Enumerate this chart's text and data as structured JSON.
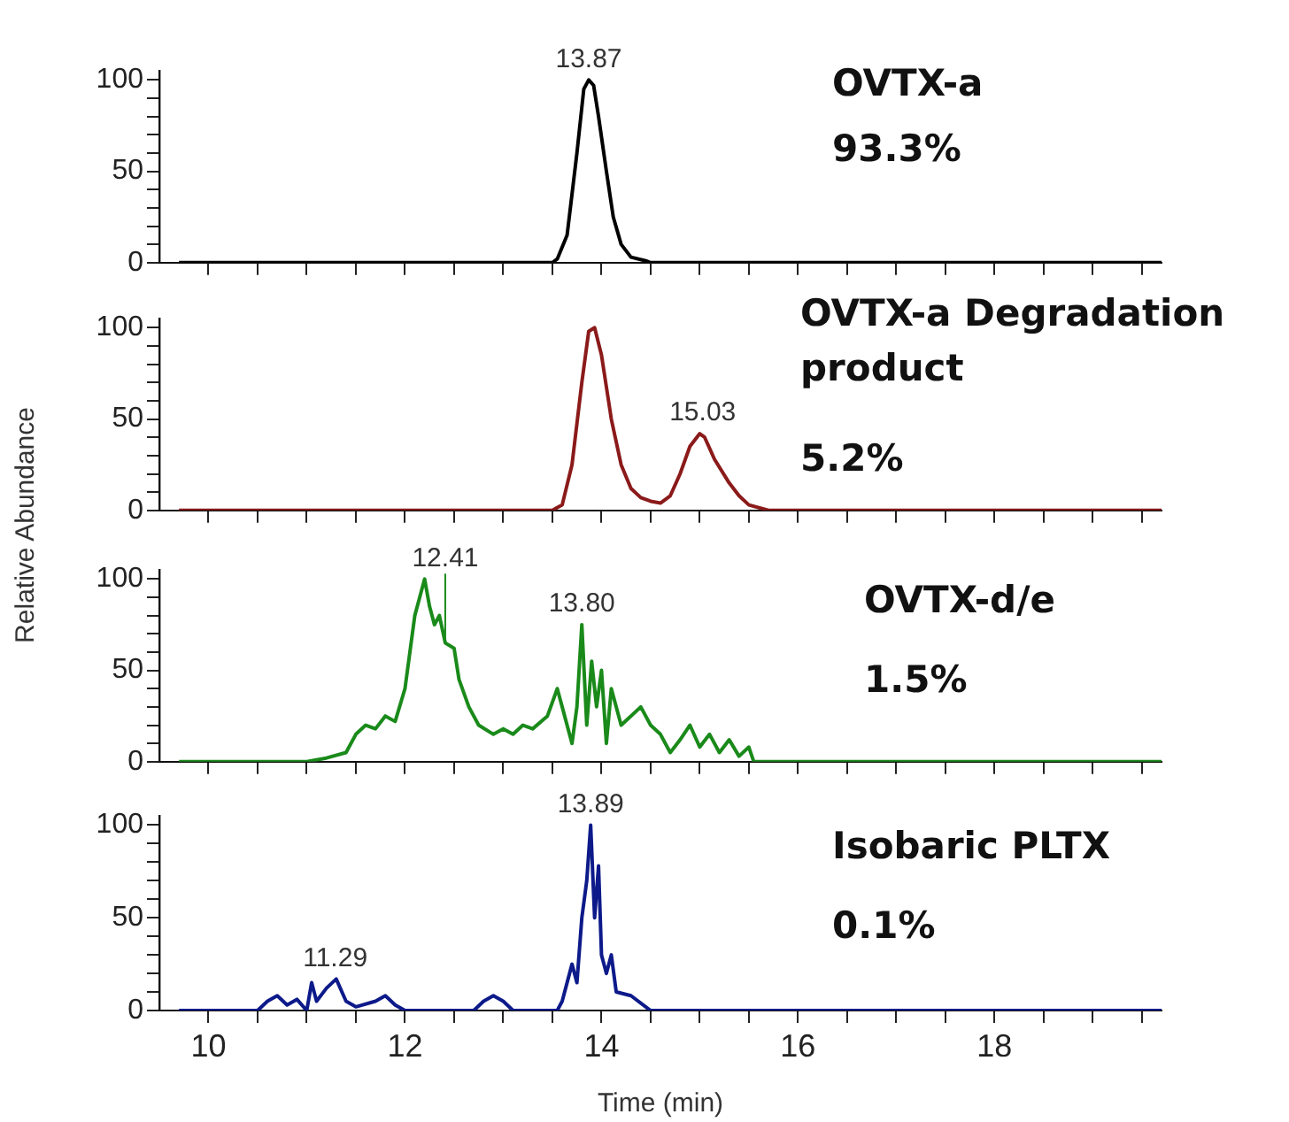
{
  "chart_data": [
    {
      "type": "line",
      "title": "OVTX-a",
      "subtitle": "93.3%",
      "xlim": [
        9.5,
        19.7
      ],
      "ylim": [
        0,
        105
      ],
      "tick_labels": "y",
      "xticks": [
        10,
        {
          "value": 10.5,
          "label": null
        },
        {
          "value": 11,
          "label": null
        },
        {
          "value": 11.5,
          "label": null
        },
        12,
        {
          "value": 12.5,
          "label": null
        },
        {
          "value": 13,
          "label": null
        },
        {
          "value": 13.5,
          "label": null
        },
        14,
        {
          "value": 14.5,
          "label": null
        },
        {
          "value": 15,
          "label": null
        },
        {
          "value": 15.5,
          "label": null
        },
        16,
        {
          "value": 16.5,
          "label": null
        },
        {
          "value": 17,
          "label": null
        },
        {
          "value": 17.5,
          "label": null
        },
        18,
        {
          "value": 18.5,
          "label": null
        },
        {
          "value": 19,
          "label": null
        },
        {
          "value": 19.5,
          "label": null
        }
      ],
      "yticks": [
        0,
        {
          "value": 10,
          "label": null
        },
        {
          "value": 20,
          "label": null
        },
        {
          "value": 30,
          "label": null
        },
        {
          "value": 40,
          "label": null
        },
        50,
        {
          "value": 60,
          "label": null
        },
        {
          "value": 70,
          "label": null
        },
        {
          "value": 80,
          "label": null
        },
        {
          "value": 90,
          "label": null
        },
        100
      ],
      "annotations": [
        {
          "text": "13.87",
          "x": 13.87,
          "y": 100
        }
      ],
      "series": [
        {
          "color": "#000000",
          "x": [
            9.7,
            13.5,
            13.55,
            13.65,
            13.75,
            13.82,
            13.87,
            13.92,
            13.97,
            14.05,
            14.12,
            14.2,
            14.3,
            14.45,
            14.5,
            19.7
          ],
          "values": [
            0,
            0,
            2,
            15,
            60,
            95,
            100,
            97,
            80,
            50,
            25,
            10,
            3,
            1,
            0,
            0
          ]
        }
      ]
    },
    {
      "type": "line",
      "title": "OVTX-a Degradation product",
      "subtitle": "5.2%",
      "ylabel": "Relative Abundance",
      "xlim": [
        9.5,
        19.7
      ],
      "ylim": [
        0,
        105
      ],
      "tick_labels": "y",
      "xticks": [
        10,
        {
          "value": 10.5,
          "label": null
        },
        {
          "value": 11,
          "label": null
        },
        {
          "value": 11.5,
          "label": null
        },
        12,
        {
          "value": 12.5,
          "label": null
        },
        {
          "value": 13,
          "label": null
        },
        {
          "value": 13.5,
          "label": null
        },
        14,
        {
          "value": 14.5,
          "label": null
        },
        {
          "value": 15,
          "label": null
        },
        {
          "value": 15.5,
          "label": null
        },
        16,
        {
          "value": 16.5,
          "label": null
        },
        {
          "value": 17,
          "label": null
        },
        {
          "value": 17.5,
          "label": null
        },
        18,
        {
          "value": 18.5,
          "label": null
        },
        {
          "value": 19,
          "label": null
        },
        {
          "value": 19.5,
          "label": null
        }
      ],
      "yticks": [
        0,
        {
          "value": 10,
          "label": null
        },
        {
          "value": 20,
          "label": null
        },
        {
          "value": 30,
          "label": null
        },
        {
          "value": 40,
          "label": null
        },
        50,
        {
          "value": 60,
          "label": null
        },
        {
          "value": 70,
          "label": null
        },
        {
          "value": 80,
          "label": null
        },
        {
          "value": 90,
          "label": null
        },
        100
      ],
      "annotations": [
        {
          "text": "15.03",
          "x": 15.03,
          "y": 42
        }
      ],
      "series": [
        {
          "color": "#8b1a1a",
          "x": [
            9.7,
            13.5,
            13.6,
            13.7,
            13.8,
            13.87,
            13.93,
            14.0,
            14.1,
            14.2,
            14.3,
            14.4,
            14.5,
            14.6,
            14.7,
            14.8,
            14.9,
            15.0,
            15.05,
            15.15,
            15.3,
            15.4,
            15.5,
            15.7,
            19.7
          ],
          "values": [
            0,
            0,
            3,
            25,
            70,
            98,
            100,
            85,
            50,
            25,
            12,
            7,
            5,
            4,
            8,
            20,
            35,
            42,
            40,
            28,
            15,
            8,
            3,
            0,
            0
          ]
        }
      ]
    },
    {
      "type": "line",
      "title": "OVTX-d/e",
      "subtitle": "1.5%",
      "xlim": [
        9.5,
        19.7
      ],
      "ylim": [
        0,
        105
      ],
      "tick_labels": "y",
      "xticks": [
        10,
        {
          "value": 10.5,
          "label": null
        },
        {
          "value": 11,
          "label": null
        },
        {
          "value": 11.5,
          "label": null
        },
        12,
        {
          "value": 12.5,
          "label": null
        },
        {
          "value": 13,
          "label": null
        },
        {
          "value": 13.5,
          "label": null
        },
        14,
        {
          "value": 14.5,
          "label": null
        },
        {
          "value": 15,
          "label": null
        },
        {
          "value": 15.5,
          "label": null
        },
        16,
        {
          "value": 16.5,
          "label": null
        },
        {
          "value": 17,
          "label": null
        },
        {
          "value": 17.5,
          "label": null
        },
        18,
        {
          "value": 18.5,
          "label": null
        },
        {
          "value": 19,
          "label": null
        },
        {
          "value": 19.5,
          "label": null
        }
      ],
      "yticks": [
        0,
        {
          "value": 10,
          "label": null
        },
        {
          "value": 20,
          "label": null
        },
        {
          "value": 30,
          "label": null
        },
        {
          "value": 40,
          "label": null
        },
        50,
        {
          "value": 60,
          "label": null
        },
        {
          "value": 70,
          "label": null
        },
        {
          "value": 80,
          "label": null
        },
        {
          "value": 90,
          "label": null
        },
        100
      ],
      "annotations": [
        {
          "text": "12.41",
          "x": 12.41,
          "y": 65
        },
        {
          "text": "13.80",
          "x": 13.8,
          "y": 75
        }
      ],
      "series": [
        {
          "color": "#1a8a1a",
          "x": [
            9.7,
            11.0,
            11.2,
            11.4,
            11.5,
            11.6,
            11.7,
            11.8,
            11.9,
            12.0,
            12.05,
            12.1,
            12.15,
            12.2,
            12.25,
            12.3,
            12.35,
            12.41,
            12.5,
            12.55,
            12.65,
            12.75,
            12.9,
            13.0,
            13.1,
            13.2,
            13.3,
            13.45,
            13.55,
            13.6,
            13.7,
            13.75,
            13.8,
            13.85,
            13.9,
            13.95,
            14.0,
            14.05,
            14.1,
            14.2,
            14.3,
            14.4,
            14.5,
            14.6,
            14.7,
            14.8,
            14.9,
            15.0,
            15.1,
            15.2,
            15.3,
            15.4,
            15.5,
            15.55,
            19.7
          ],
          "values": [
            0,
            0,
            2,
            5,
            15,
            20,
            18,
            25,
            22,
            40,
            60,
            80,
            90,
            100,
            85,
            75,
            80,
            65,
            62,
            45,
            30,
            20,
            15,
            18,
            15,
            20,
            18,
            25,
            40,
            30,
            10,
            30,
            75,
            20,
            55,
            30,
            50,
            10,
            40,
            20,
            25,
            30,
            20,
            15,
            5,
            12,
            20,
            8,
            15,
            5,
            12,
            3,
            8,
            0,
            0
          ]
        }
      ]
    },
    {
      "type": "line",
      "title": "Isobaric PLTX",
      "subtitle": "0.1%",
      "xlabel": "Time (min)",
      "xlim": [
        9.5,
        19.7
      ],
      "ylim": [
        0,
        105
      ],
      "xticks": [
        10,
        {
          "value": 10.5,
          "label": null
        },
        {
          "value": 11,
          "label": null
        },
        {
          "value": 11.5,
          "label": null
        },
        12,
        {
          "value": 12.5,
          "label": null
        },
        {
          "value": 13,
          "label": null
        },
        {
          "value": 13.5,
          "label": null
        },
        14,
        {
          "value": 14.5,
          "label": null
        },
        {
          "value": 15,
          "label": null
        },
        {
          "value": 15.5,
          "label": null
        },
        16,
        {
          "value": 16.5,
          "label": null
        },
        {
          "value": 17,
          "label": null
        },
        {
          "value": 17.5,
          "label": null
        },
        18,
        {
          "value": 18.5,
          "label": null
        },
        {
          "value": 19,
          "label": null
        },
        {
          "value": 19.5,
          "label": null
        }
      ],
      "yticks": [
        0,
        {
          "value": 10,
          "label": null
        },
        {
          "value": 20,
          "label": null
        },
        {
          "value": 30,
          "label": null
        },
        {
          "value": 40,
          "label": null
        },
        50,
        {
          "value": 60,
          "label": null
        },
        {
          "value": 70,
          "label": null
        },
        {
          "value": 80,
          "label": null
        },
        {
          "value": 90,
          "label": null
        },
        100
      ],
      "annotations": [
        {
          "text": "13.89",
          "x": 13.89,
          "y": 100
        },
        {
          "text": "11.29",
          "x": 11.29,
          "y": 17
        }
      ],
      "series": [
        {
          "color": "#0d1a8a",
          "x": [
            9.7,
            10.5,
            10.6,
            10.7,
            10.8,
            10.9,
            11.0,
            11.05,
            11.1,
            11.2,
            11.3,
            11.4,
            11.5,
            11.7,
            11.8,
            11.9,
            12.0,
            12.7,
            12.8,
            12.9,
            13.0,
            13.1,
            13.55,
            13.6,
            13.7,
            13.75,
            13.8,
            13.85,
            13.89,
            13.93,
            13.97,
            14.0,
            14.05,
            14.1,
            14.15,
            14.3,
            14.45,
            14.5,
            19.7
          ],
          "values": [
            0,
            0,
            5,
            8,
            3,
            6,
            0,
            15,
            5,
            12,
            17,
            5,
            2,
            5,
            8,
            3,
            0,
            0,
            5,
            8,
            5,
            0,
            0,
            5,
            25,
            15,
            50,
            70,
            100,
            50,
            78,
            30,
            20,
            30,
            10,
            8,
            2,
            0,
            0
          ]
        }
      ]
    }
  ]
}
